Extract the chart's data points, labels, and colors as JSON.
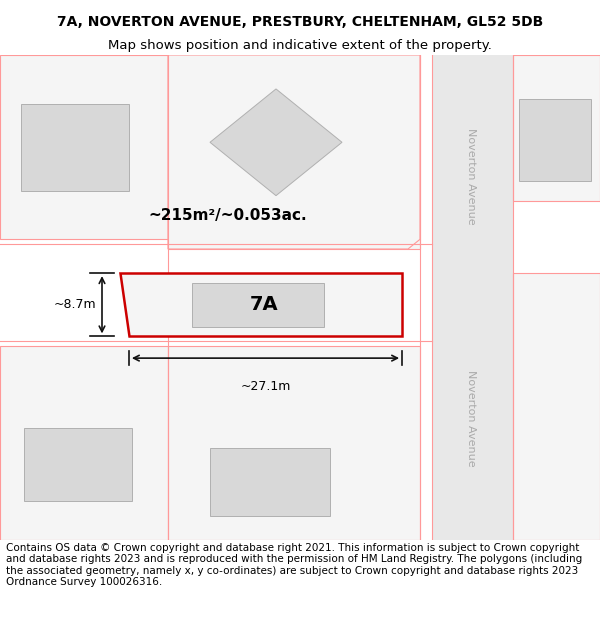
{
  "title_line1": "7A, NOVERTON AVENUE, PRESTBURY, CHELTENHAM, GL52 5DB",
  "title_line2": "Map shows position and indicative extent of the property.",
  "footer_text": "Contains OS data © Crown copyright and database right 2021. This information is subject to Crown copyright and database rights 2023 and is reproduced with the permission of HM Land Registry. The polygons (including the associated geometry, namely x, y co-ordinates) are subject to Crown copyright and database rights 2023 Ordnance Survey 100026316.",
  "area_label": "~215m²/~0.053ac.",
  "width_label": "~27.1m",
  "height_label": "~8.7m",
  "plot_label": "7A",
  "background_color": "#ffffff",
  "map_bg_color": "#f5f5f5",
  "road_color": "#e8e8e8",
  "plot_fill": "#f0f0f0",
  "plot_border_color": "#cc0000",
  "building_fill": "#d8d8d8",
  "building_border": "#b0b0b0",
  "pink_line_color": "#ff9999",
  "dim_line_color": "#111111",
  "road_label": "Noverton Avenue",
  "title_fontsize": 10,
  "footer_fontsize": 7.5
}
